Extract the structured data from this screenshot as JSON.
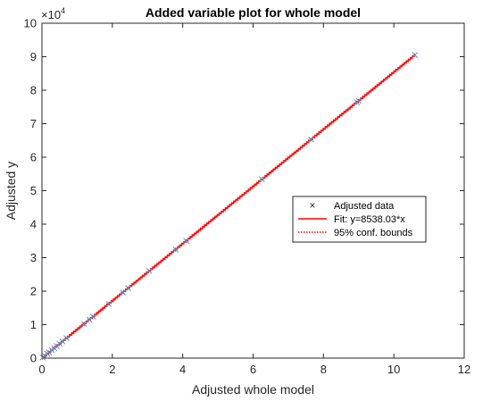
{
  "chart_data": {
    "type": "scatter",
    "title": "Added variable plot for whole model",
    "xlabel": "Adjusted whole model",
    "ylabel": "Adjusted y",
    "xlim": [
      0,
      12
    ],
    "ylim": [
      0,
      10
    ],
    "y_exponent_label": "×10",
    "y_exponent_power": "4",
    "x_ticks": [
      "0",
      "2",
      "4",
      "6",
      "8",
      "10",
      "12"
    ],
    "y_ticks": [
      "0",
      "1",
      "2",
      "3",
      "4",
      "5",
      "6",
      "7",
      "8",
      "9",
      "10"
    ],
    "grid": false,
    "legend_position": "right",
    "colors": {
      "data": "#4a90c8",
      "fit": "#ff0000",
      "bounds": "#ff0000",
      "axes": "#262626"
    },
    "series": [
      {
        "name": "Adjusted data",
        "marker": "x",
        "x": [
          0.02,
          0.08,
          0.15,
          0.2,
          0.28,
          0.35,
          0.42,
          0.5,
          0.58,
          0.7,
          1.2,
          1.35,
          1.45,
          1.9,
          2.3,
          2.45,
          3.05,
          3.8,
          4.1,
          6.25,
          7.65,
          8.95,
          9.0,
          10.6
        ],
        "y": [
          0.02,
          0.07,
          0.13,
          0.17,
          0.24,
          0.3,
          0.36,
          0.43,
          0.5,
          0.6,
          1.02,
          1.15,
          1.24,
          1.62,
          1.96,
          2.09,
          2.6,
          3.24,
          3.5,
          5.34,
          6.53,
          7.64,
          7.68,
          9.05
        ]
      },
      {
        "name": "Fit: y=8538.03*x",
        "type": "line",
        "x": [
          0,
          10.6
        ],
        "y": [
          0,
          9.05
        ]
      },
      {
        "name": "95% conf. bounds",
        "type": "dotted-line",
        "x": [
          0,
          10.6
        ],
        "y": [
          0,
          9.05
        ]
      }
    ]
  }
}
